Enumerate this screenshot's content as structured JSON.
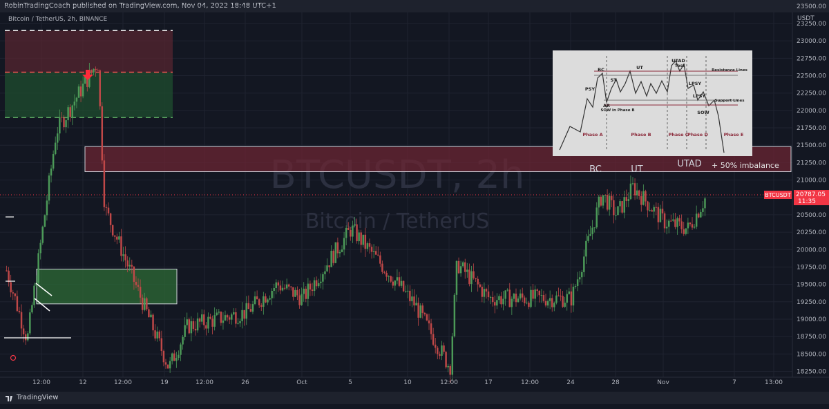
{
  "header": {
    "published_by": "RobinTradingCoach published on TradingView.com, Nov 04, 2022 18:48 UTC+1",
    "symbol_line": "Bitcoin / TetherUS, 2h, BINANCE"
  },
  "footer": {
    "logo_text": "TradingView"
  },
  "watermark": {
    "title": "BTCUSDT, 2h",
    "subtitle": "Bitcoin / TetherUS"
  },
  "price_axis": {
    "currency": "USDT",
    "current_symbol": "BTCUSDT",
    "current_price": "20787.05",
    "countdown": "11:35"
  },
  "annotations": {
    "bc": "BC",
    "ut": "UT",
    "utad": "UTAD",
    "imbalance": "+ 50% imbalance"
  },
  "inset": {
    "labels": [
      "BC",
      "PSY",
      "ST",
      "AR",
      "UT",
      "SOW in Phase B",
      "UTAD",
      "Test",
      "LPSY",
      "LPSY",
      "SOW",
      "Resistance Lines",
      "Support Lines",
      "Phase A",
      "Phase B",
      "Phase C",
      "Phase D",
      "Phase E"
    ]
  },
  "colors": {
    "background": "#131722",
    "up": "#26a69a",
    "down": "#ef5350",
    "zone_red": "#5a2630",
    "zone_green": "#1e4a2e",
    "price_tag": "#f23645"
  },
  "chart_data": {
    "type": "candlestick",
    "title": "",
    "xlabel": "",
    "ylabel": "USDT",
    "ylim": [
      18050,
      23550
    ],
    "y_ticks": [
      18250,
      18500,
      18750,
      19000,
      19250,
      19500,
      19750,
      20000,
      20250,
      20500,
      20750,
      21000,
      21250,
      21500,
      21750,
      22000,
      22250,
      22500,
      22750,
      23000,
      23250,
      23500
    ],
    "x_tick_labels": [
      "12:00",
      "12",
      "12:00",
      "19",
      "12:00",
      "26",
      "Oct",
      "5",
      "10",
      "12:00",
      "17",
      "12:00",
      "24",
      "28",
      "Nov",
      "7",
      "13:00"
    ],
    "approx_close_path": [
      {
        "t": "Sep 11",
        "price": 19700
      },
      {
        "t": "Sep 11 12:00",
        "price": 18700
      },
      {
        "t": "Sep 12",
        "price": 21700
      },
      {
        "t": "Sep 13",
        "price": 22700
      },
      {
        "t": "Sep 13 12:00",
        "price": 20600
      },
      {
        "t": "Sep 19",
        "price": 18300
      },
      {
        "t": "Sep 21",
        "price": 18900
      },
      {
        "t": "Sep 26",
        "price": 19100
      },
      {
        "t": "Sep 28",
        "price": 19500
      },
      {
        "t": "Oct 1",
        "price": 19300
      },
      {
        "t": "Oct 5",
        "price": 20300
      },
      {
        "t": "Oct 10",
        "price": 19200
      },
      {
        "t": "Oct 13",
        "price": 18300
      },
      {
        "t": "Oct 14",
        "price": 19800
      },
      {
        "t": "Oct 17",
        "price": 19300
      },
      {
        "t": "Oct 24",
        "price": 19300
      },
      {
        "t": "Oct 26",
        "price": 20800
      },
      {
        "t": "Oct 28",
        "price": 20500
      },
      {
        "t": "Oct 29",
        "price": 20900
      },
      {
        "t": "Nov 1",
        "price": 20400
      },
      {
        "t": "Nov 3",
        "price": 20300
      },
      {
        "t": "Nov 4",
        "price": 20787.05
      }
    ],
    "zones": [
      {
        "kind": "supply",
        "top": 23150,
        "bottom": 22550
      },
      {
        "kind": "demand",
        "top": 22550,
        "bottom": 21900
      },
      {
        "kind": "demand",
        "top": 19720,
        "bottom": 19220
      },
      {
        "kind": "imbalance",
        "top": 21480,
        "bottom": 21120
      }
    ],
    "horizontal_levels": [
      20787.05
    ]
  }
}
